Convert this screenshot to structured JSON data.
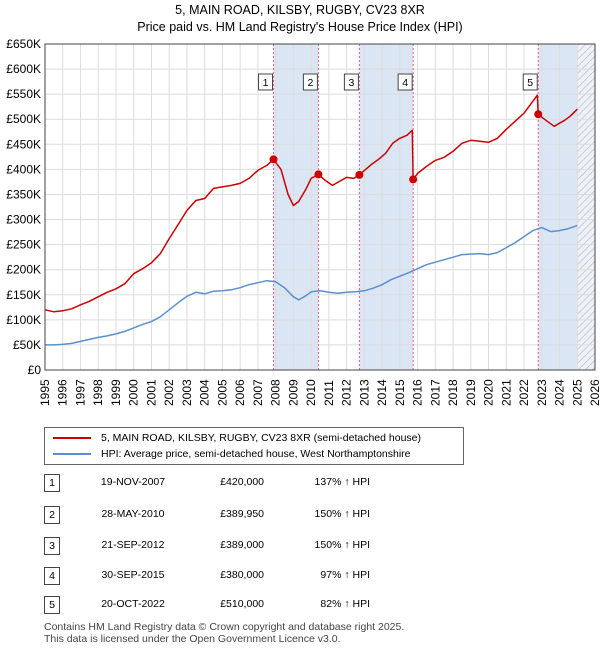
{
  "chart_data": {
    "type": "line",
    "title": "5, MAIN ROAD, KILSBY, RUGBY, CV23 8XR",
    "subtitle": "Price paid vs. HM Land Registry's House Price Index (HPI)",
    "xlim": [
      1995,
      2026
    ],
    "ylim": [
      0,
      650000
    ],
    "x_ticks": [
      1995,
      1996,
      1997,
      1998,
      1999,
      2000,
      2001,
      2002,
      2003,
      2004,
      2005,
      2006,
      2007,
      2008,
      2009,
      2010,
      2011,
      2012,
      2013,
      2014,
      2015,
      2016,
      2017,
      2018,
      2019,
      2020,
      2021,
      2022,
      2023,
      2024,
      2025,
      2026
    ],
    "y_ticks": [
      0,
      50000,
      100000,
      150000,
      200000,
      250000,
      300000,
      350000,
      400000,
      450000,
      500000,
      550000,
      600000,
      650000
    ],
    "y_tick_labels": [
      "£0",
      "£50K",
      "£100K",
      "£150K",
      "£200K",
      "£250K",
      "£300K",
      "£350K",
      "£400K",
      "£450K",
      "£500K",
      "£550K",
      "£600K",
      "£650K"
    ],
    "grid": true,
    "shaded_ranges": [
      [
        2007.88,
        2010.41
      ],
      [
        2012.72,
        2015.75
      ],
      [
        2022.8,
        2025.0
      ]
    ],
    "hatched_range": [
      2025.0,
      2026.0
    ],
    "colors": {
      "property": "#cc0000",
      "hpi": "#5b8fce",
      "sale_line": "#e06080",
      "shade": "#dbe6f5",
      "grid": "#dddddd"
    },
    "series": [
      {
        "name": "5, MAIN ROAD, KILSBY, RUGBY, CV23 8XR (semi-detached house)",
        "key": "property",
        "x": [
          1995.0,
          1995.5,
          1996.0,
          1996.5,
          1997.0,
          1997.5,
          1998.0,
          1998.5,
          1999.0,
          1999.5,
          2000.0,
          2000.5,
          2001.0,
          2001.5,
          2002.0,
          2002.5,
          2003.0,
          2003.5,
          2004.0,
          2004.5,
          2005.0,
          2005.5,
          2006.0,
          2006.5,
          2007.0,
          2007.5,
          2007.88,
          2008.3,
          2008.7,
          2009.0,
          2009.3,
          2009.7,
          2010.0,
          2010.41,
          2010.8,
          2011.2,
          2011.6,
          2012.0,
          2012.4,
          2012.72,
          2013.0,
          2013.4,
          2013.8,
          2014.2,
          2014.6,
          2015.0,
          2015.4,
          2015.7,
          2015.75,
          2016.0,
          2016.5,
          2017.0,
          2017.5,
          2018.0,
          2018.5,
          2019.0,
          2019.5,
          2020.0,
          2020.5,
          2021.0,
          2021.5,
          2022.0,
          2022.5,
          2022.75,
          2022.8,
          2023.0,
          2023.3,
          2023.7,
          2024.0,
          2024.3,
          2024.6,
          2025.0
        ],
        "y": [
          120000,
          116000,
          118000,
          122000,
          130000,
          137000,
          146000,
          155000,
          162000,
          172000,
          192000,
          202000,
          214000,
          232000,
          262000,
          290000,
          318000,
          338000,
          342000,
          362000,
          365000,
          368000,
          372000,
          382000,
          398000,
          408000,
          420000,
          400000,
          350000,
          328000,
          336000,
          360000,
          382000,
          389950,
          378000,
          368000,
          376000,
          384000,
          382000,
          389000,
          398000,
          410000,
          420000,
          432000,
          452000,
          462000,
          468000,
          478000,
          380000,
          392000,
          406000,
          418000,
          424000,
          436000,
          452000,
          458000,
          456000,
          454000,
          462000,
          480000,
          496000,
          512000,
          536000,
          548000,
          510000,
          504000,
          496000,
          486000,
          492000,
          498000,
          506000,
          520000
        ]
      },
      {
        "name": "HPI: Average price, semi-detached house, West Northamptonshire",
        "key": "hpi",
        "x": [
          1995.0,
          1995.5,
          1996.0,
          1996.5,
          1997.0,
          1997.5,
          1998.0,
          1998.5,
          1999.0,
          1999.5,
          2000.0,
          2000.5,
          2001.0,
          2001.5,
          2002.0,
          2002.5,
          2003.0,
          2003.5,
          2004.0,
          2004.5,
          2005.0,
          2005.5,
          2006.0,
          2006.5,
          2007.0,
          2007.5,
          2008.0,
          2008.5,
          2009.0,
          2009.3,
          2009.7,
          2010.0,
          2010.5,
          2011.0,
          2011.5,
          2012.0,
          2012.5,
          2013.0,
          2013.5,
          2014.0,
          2014.5,
          2015.0,
          2015.5,
          2016.0,
          2016.5,
          2017.0,
          2017.5,
          2018.0,
          2018.5,
          2019.0,
          2019.5,
          2020.0,
          2020.5,
          2021.0,
          2021.5,
          2022.0,
          2022.5,
          2023.0,
          2023.5,
          2024.0,
          2024.5,
          2025.0
        ],
        "y": [
          50000,
          50000,
          51000,
          53000,
          57000,
          61000,
          65000,
          68000,
          72000,
          77000,
          84000,
          91000,
          97000,
          106000,
          120000,
          134000,
          147000,
          155000,
          152000,
          157000,
          158000,
          160000,
          164000,
          170000,
          174000,
          178000,
          176000,
          164000,
          146000,
          140000,
          148000,
          156000,
          158000,
          155000,
          153000,
          155000,
          156000,
          158000,
          163000,
          170000,
          180000,
          187000,
          194000,
          202000,
          210000,
          215000,
          220000,
          225000,
          230000,
          231000,
          232000,
          230000,
          234000,
          244000,
          254000,
          266000,
          278000,
          284000,
          276000,
          278000,
          282000,
          288000
        ]
      }
    ],
    "sale_points": [
      {
        "label": "1",
        "x": 2007.88,
        "y": 420000
      },
      {
        "label": "2",
        "x": 2010.41,
        "y": 389950
      },
      {
        "label": "3",
        "x": 2012.72,
        "y": 389000
      },
      {
        "label": "4",
        "x": 2015.75,
        "y": 380000
      },
      {
        "label": "5",
        "x": 2022.8,
        "y": 510000
      }
    ]
  },
  "transactions": [
    {
      "num": "1",
      "date": "19-NOV-2007",
      "price": "£420,000",
      "hpi": "137% ↑ HPI"
    },
    {
      "num": "2",
      "date": "28-MAY-2010",
      "price": "£389,950",
      "hpi": "150% ↑ HPI"
    },
    {
      "num": "3",
      "date": "21-SEP-2012",
      "price": "£389,000",
      "hpi": "150% ↑ HPI"
    },
    {
      "num": "4",
      "date": "30-SEP-2015",
      "price": "£380,000",
      "hpi": "97% ↑ HPI"
    },
    {
      "num": "5",
      "date": "20-OCT-2022",
      "price": "£510,000",
      "hpi": "82% ↑ HPI"
    }
  ],
  "footer": {
    "line1": "Contains HM Land Registry data © Crown copyright and database right 2025.",
    "line2": "This data is licensed under the Open Government Licence v3.0."
  }
}
